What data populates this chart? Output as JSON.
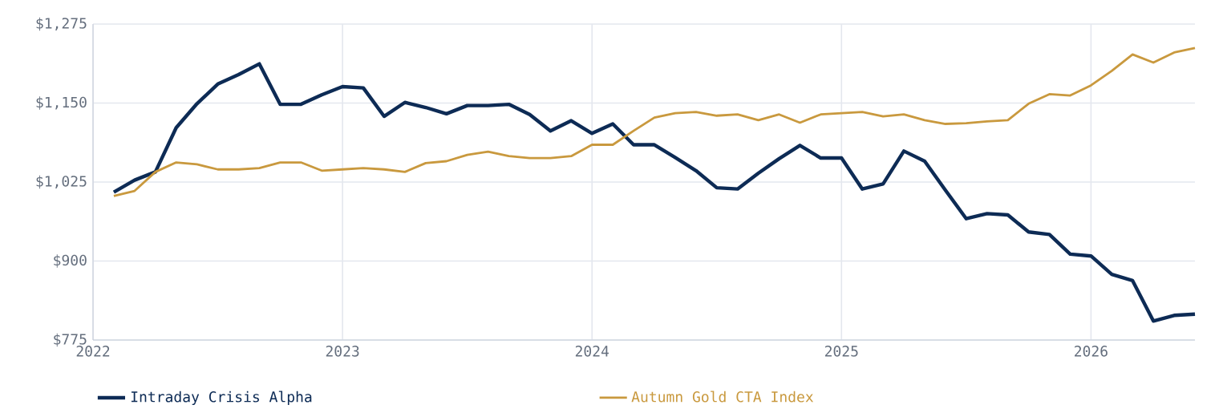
{
  "chart_data": {
    "type": "line",
    "x": [
      "2022-02",
      "2022-03",
      "2022-04",
      "2022-05",
      "2022-06",
      "2022-07",
      "2022-08",
      "2022-09",
      "2022-10",
      "2022-11",
      "2022-12",
      "2023-01",
      "2023-02",
      "2023-03",
      "2023-04",
      "2023-05",
      "2023-06",
      "2023-07",
      "2023-08",
      "2023-09",
      "2023-10",
      "2023-11",
      "2023-12",
      "2024-01",
      "2024-02",
      "2024-03",
      "2024-04",
      "2024-05",
      "2024-06",
      "2024-07",
      "2024-08",
      "2024-09",
      "2024-10",
      "2024-11",
      "2024-12",
      "2025-01",
      "2025-02",
      "2025-03",
      "2025-04",
      "2025-05",
      "2025-06",
      "2025-07",
      "2025-08",
      "2025-09",
      "2025-10",
      "2025-11",
      "2025-12",
      "2026-01",
      "2026-02",
      "2026-03",
      "2026-04",
      "2026-05",
      "2026-06"
    ],
    "series": [
      {
        "name": "Intraday Crisis Alpha",
        "color": "#0d2b55",
        "values": [
          1009,
          1028,
          1041,
          1111,
          1149,
          1180,
          1195,
          1212,
          1148,
          1148,
          1163,
          1176,
          1174,
          1129,
          1151,
          1143,
          1133,
          1146,
          1146,
          1148,
          1132,
          1106,
          1122,
          1102,
          1117,
          1084,
          1084,
          1064,
          1043,
          1016,
          1014,
          1039,
          1062,
          1083,
          1063,
          1063,
          1014,
          1022,
          1074,
          1058,
          1012,
          967,
          975,
          973,
          946,
          942,
          911,
          908,
          879,
          869,
          805,
          814,
          816
        ]
      },
      {
        "name": "Autumn Gold CTA Index",
        "color": "#c9993e",
        "values": [
          1003,
          1011,
          1041,
          1056,
          1053,
          1045,
          1045,
          1047,
          1056,
          1056,
          1043,
          1045,
          1047,
          1045,
          1041,
          1055,
          1058,
          1068,
          1073,
          1066,
          1063,
          1063,
          1066,
          1084,
          1084,
          1106,
          1127,
          1134,
          1136,
          1130,
          1132,
          1123,
          1132,
          1119,
          1132,
          1134,
          1136,
          1129,
          1132,
          1123,
          1117,
          1118,
          1121,
          1123,
          1149,
          1164,
          1162,
          1178,
          1201,
          1227,
          1214,
          1230,
          1237
        ]
      }
    ],
    "xlim": [
      "2022-01",
      "2026-06"
    ],
    "xticks": [
      "2022",
      "2023",
      "2024",
      "2025",
      "2026"
    ],
    "ylim": [
      775,
      1275
    ],
    "yticks": [
      {
        "value": 775,
        "label": "$775"
      },
      {
        "value": 900,
        "label": "$900"
      },
      {
        "value": 1025,
        "label": "$1,025"
      },
      {
        "value": 1150,
        "label": "$1,150"
      },
      {
        "value": 1275,
        "label": "$1,275"
      }
    ],
    "grid": true,
    "legend": "bottom",
    "marker": "none",
    "line_style": "solid"
  }
}
